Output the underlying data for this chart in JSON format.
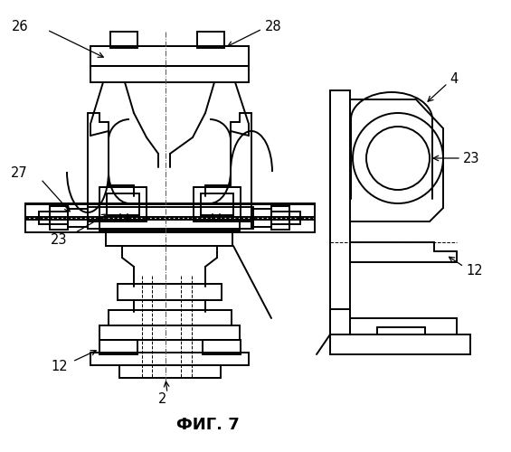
{
  "title": "ФИГ. 7",
  "line_color": "#000000",
  "bg_color": "#ffffff",
  "lw": 1.4,
  "lw_thin": 0.7
}
